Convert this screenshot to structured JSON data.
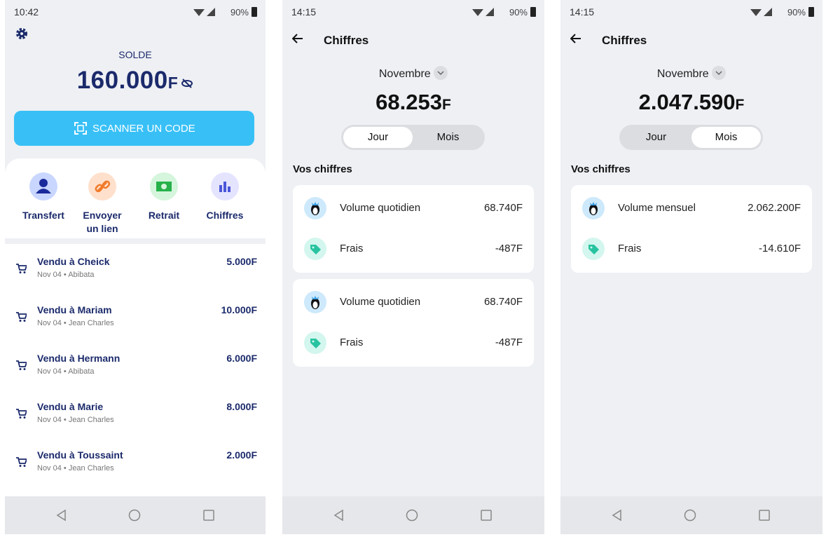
{
  "screens": [
    {
      "status": {
        "time": "10:42",
        "battery": "90%"
      },
      "balance": {
        "label": "SOLDE",
        "amount": "160.000",
        "currency": "F"
      },
      "scan_button": "SCANNER UN CODE",
      "actions": [
        "Transfert",
        "Envoyer un lien",
        "Retrait",
        "Chiffres"
      ],
      "transactions": [
        {
          "title": "Vendu à Cheick",
          "subtitle": "Nov 04 • Abibata",
          "amount": "5.000F"
        },
        {
          "title": "Vendu à Mariam",
          "subtitle": "Nov 04 • Jean Charles",
          "amount": "10.000F"
        },
        {
          "title": "Vendu à Hermann",
          "subtitle": "Nov 04 • Abibata",
          "amount": "6.000F"
        },
        {
          "title": "Vendu à Marie",
          "subtitle": "Nov 04 • Jean Charles",
          "amount": "8.000F"
        },
        {
          "title": "Vendu à Toussaint",
          "subtitle": "Nov 04 • Jean Charles",
          "amount": "2.000F"
        }
      ]
    },
    {
      "status": {
        "time": "14:15",
        "battery": "90%"
      },
      "title": "Chiffres",
      "month": "Novembre",
      "total": {
        "amount": "68.253",
        "currency": "F"
      },
      "tabs": [
        "Jour",
        "Mois"
      ],
      "active_tab": 0,
      "section": "Vos chiffres",
      "cards": [
        {
          "rows": [
            {
              "label": "Volume quotidien",
              "value": "68.740F"
            },
            {
              "label": "Frais",
              "value": "-487F"
            }
          ]
        },
        {
          "rows": [
            {
              "label": "Volume quotidien",
              "value": "68.740F"
            },
            {
              "label": "Frais",
              "value": "-487F"
            }
          ]
        }
      ]
    },
    {
      "status": {
        "time": "14:15",
        "battery": "90%"
      },
      "title": "Chiffres",
      "month": "Novembre",
      "total": {
        "amount": "2.047.590",
        "currency": "F"
      },
      "tabs": [
        "Jour",
        "Mois"
      ],
      "active_tab": 1,
      "section": "Vos chiffres",
      "cards": [
        {
          "rows": [
            {
              "label": "Volume mensuel",
              "value": "2.062.200F"
            },
            {
              "label": "Frais",
              "value": "-14.610F"
            }
          ]
        }
      ]
    }
  ]
}
